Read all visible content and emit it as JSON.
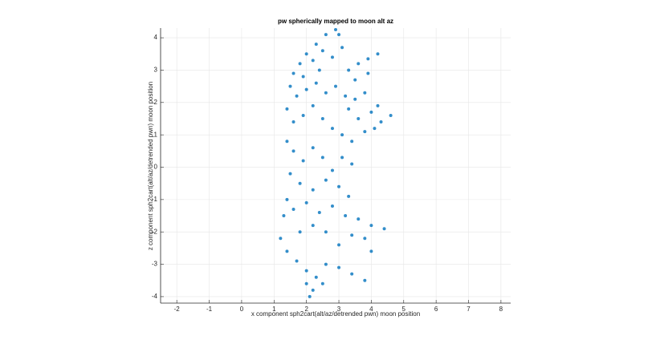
{
  "chart_data": {
    "type": "scatter",
    "title": "pw spherically mapped to moon alt az",
    "x_label": "x component sph2cart(alt/az/detrended pwn) moon position",
    "y_label": "z component sph2cart(alt/az/detrended pwn) moon position",
    "color": "#0072bd",
    "grid": true,
    "xlim": [
      -2.5,
      8.3
    ],
    "ylim": [
      -4.2,
      4.3
    ],
    "xticks": [
      -2,
      -1,
      0,
      1,
      2,
      3,
      4,
      5,
      6,
      7,
      8
    ],
    "yticks": [
      -4,
      -3,
      -2,
      -1,
      0,
      1,
      2,
      3,
      4
    ],
    "x": [
      1.8,
      2.0,
      2.3,
      2.6,
      2.9,
      3.0,
      2.5,
      2.2,
      1.6,
      1.9,
      2.4,
      2.8,
      3.1,
      3.3,
      3.6,
      3.9,
      4.2,
      3.5,
      3.9,
      1.5,
      1.7,
      2.0,
      2.3,
      2.6,
      2.9,
      3.2,
      3.5,
      3.8,
      4.2,
      4.6,
      4.3,
      4.0,
      3.6,
      3.3,
      1.4,
      1.6,
      1.9,
      2.2,
      2.5,
      2.8,
      3.1,
      3.4,
      3.8,
      4.1,
      1.4,
      1.6,
      1.9,
      2.2,
      2.5,
      2.8,
      3.1,
      3.4,
      1.5,
      1.8,
      2.2,
      2.6,
      3.0,
      3.3,
      1.4,
      1.3,
      1.6,
      2.0,
      2.4,
      2.8,
      3.2,
      3.6,
      4.0,
      4.4,
      3.8,
      4.0,
      3.4,
      3.0,
      2.6,
      2.2,
      1.8,
      1.2,
      1.4,
      1.7,
      2.0,
      2.3,
      2.6,
      3.0,
      3.4,
      3.8,
      2.2,
      2.5,
      2.0,
      2.1
    ],
    "y": [
      3.2,
      3.5,
      3.8,
      4.1,
      4.25,
      4.1,
      3.6,
      3.3,
      2.9,
      2.8,
      3.0,
      3.4,
      3.7,
      3.0,
      3.2,
      3.35,
      3.5,
      2.7,
      2.9,
      2.5,
      2.2,
      2.4,
      2.6,
      2.3,
      2.5,
      2.2,
      2.1,
      2.3,
      1.9,
      1.6,
      1.4,
      1.7,
      1.5,
      1.8,
      1.8,
      1.4,
      1.6,
      1.9,
      1.5,
      1.2,
      1.0,
      0.8,
      1.1,
      1.2,
      0.8,
      0.5,
      0.2,
      0.6,
      0.3,
      -0.1,
      0.3,
      0.1,
      -0.2,
      -0.5,
      -0.7,
      -0.4,
      -0.6,
      -0.9,
      -1.0,
      -1.5,
      -1.3,
      -1.1,
      -1.4,
      -1.2,
      -1.5,
      -1.6,
      -1.8,
      -1.9,
      -2.2,
      -2.6,
      -2.1,
      -2.4,
      -2.0,
      -1.8,
      -2.0,
      -2.2,
      -2.6,
      -2.9,
      -3.2,
      -3.4,
      -3.0,
      -3.1,
      -3.3,
      -3.5,
      -3.8,
      -3.6,
      -3.6,
      -4.0
    ]
  }
}
